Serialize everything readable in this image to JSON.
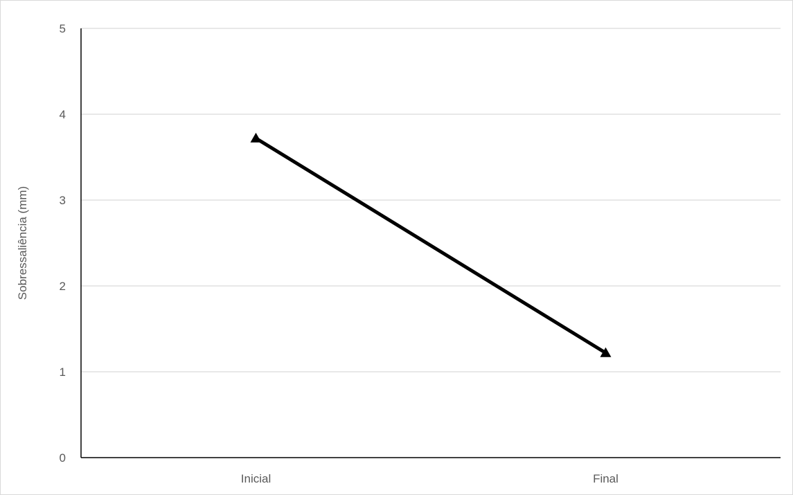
{
  "chart_data": {
    "type": "line",
    "title": "",
    "xlabel": "",
    "ylabel": "Sobressaliência (mm)",
    "categories": [
      "Inicial",
      "Final"
    ],
    "series": [
      {
        "values": [
          3.72,
          1.22
        ],
        "color": "#000000",
        "marker": "triangle"
      }
    ],
    "ylim": [
      0,
      5
    ],
    "yticks": [
      "0",
      "1",
      "2",
      "3",
      "4",
      "5"
    ],
    "grid": true,
    "legend": "none"
  },
  "colors": {
    "gridline": "#d9d9d9",
    "axis": "#000000",
    "text": "#595959",
    "frame": "#d9d9d9"
  }
}
